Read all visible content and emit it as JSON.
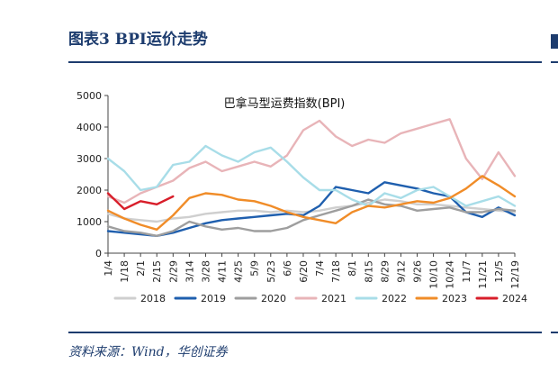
{
  "figure_title": "图表3 BPI运价走势",
  "source_note": "资料来源：Wind，华创证券",
  "chart_data": {
    "type": "line",
    "title": "巴拿马型运费指数(BPI)",
    "xlabel": "",
    "ylabel": "",
    "ylim": [
      0,
      5000
    ],
    "yticks": [
      0,
      1000,
      2000,
      3000,
      4000,
      5000
    ],
    "x_tick_labels": [
      "1/4",
      "1/18",
      "2/1",
      "2/15",
      "2/29",
      "3/14",
      "3/28",
      "4/11",
      "4/25",
      "5/9",
      "5/23",
      "6/6",
      "6/20",
      "7/4",
      "7/18",
      "8/1",
      "8/15",
      "8/29",
      "9/12",
      "9/26",
      "10/10",
      "10/24",
      "11/7",
      "11/21",
      "12/5",
      "12/19"
    ],
    "grid": false,
    "legend_position": "bottom",
    "series": [
      {
        "name": "2018",
        "color": "#cfcfcf",
        "values": [
          1250,
          1100,
          1050,
          1000,
          1100,
          1150,
          1250,
          1300,
          1350,
          1350,
          1300,
          1350,
          1300,
          1350,
          1450,
          1500,
          1600,
          1700,
          1650,
          1550,
          1550,
          1500,
          1450,
          1400,
          1350,
          1300
        ]
      },
      {
        "name": "2019",
        "color": "#1f5fae",
        "values": [
          700,
          650,
          600,
          550,
          650,
          800,
          950,
          1050,
          1100,
          1150,
          1200,
          1250,
          1200,
          1500,
          2100,
          2000,
          1900,
          2250,
          2150,
          2050,
          1900,
          1800,
          1300,
          1150,
          1450,
          1200
        ]
      },
      {
        "name": "2020",
        "color": "#9e9e9e",
        "values": [
          850,
          700,
          650,
          550,
          700,
          1000,
          850,
          750,
          800,
          700,
          700,
          800,
          1050,
          1200,
          1350,
          1500,
          1700,
          1550,
          1500,
          1350,
          1400,
          1450,
          1300,
          1300,
          1400,
          1350
        ]
      },
      {
        "name": "2021",
        "color": "#e8b4b8",
        "values": [
          1800,
          1600,
          1900,
          2100,
          2300,
          2700,
          2900,
          2600,
          2750,
          2900,
          2750,
          3100,
          3900,
          4200,
          3700,
          3400,
          3600,
          3500,
          3800,
          3950,
          4100,
          4250,
          3000,
          2350,
          3200,
          2450
        ]
      },
      {
        "name": "2022",
        "color": "#a8dde8",
        "values": [
          3000,
          2600,
          2000,
          2100,
          2800,
          2900,
          3400,
          3100,
          2900,
          3200,
          3350,
          2900,
          2400,
          2000,
          2000,
          1700,
          1500,
          1900,
          1750,
          2000,
          2100,
          1800,
          1500,
          1650,
          1800,
          1500
        ]
      },
      {
        "name": "2023",
        "color": "#f08c28",
        "values": [
          1350,
          1100,
          900,
          750,
          1200,
          1750,
          1900,
          1850,
          1700,
          1650,
          1500,
          1300,
          1150,
          1050,
          950,
          1300,
          1500,
          1450,
          1550,
          1650,
          1600,
          1750,
          2050,
          2450,
          2150,
          1800
        ]
      },
      {
        "name": "2024",
        "color": "#d81e2a",
        "values": [
          1900,
          1400,
          1650,
          1550,
          1800
        ]
      }
    ]
  }
}
